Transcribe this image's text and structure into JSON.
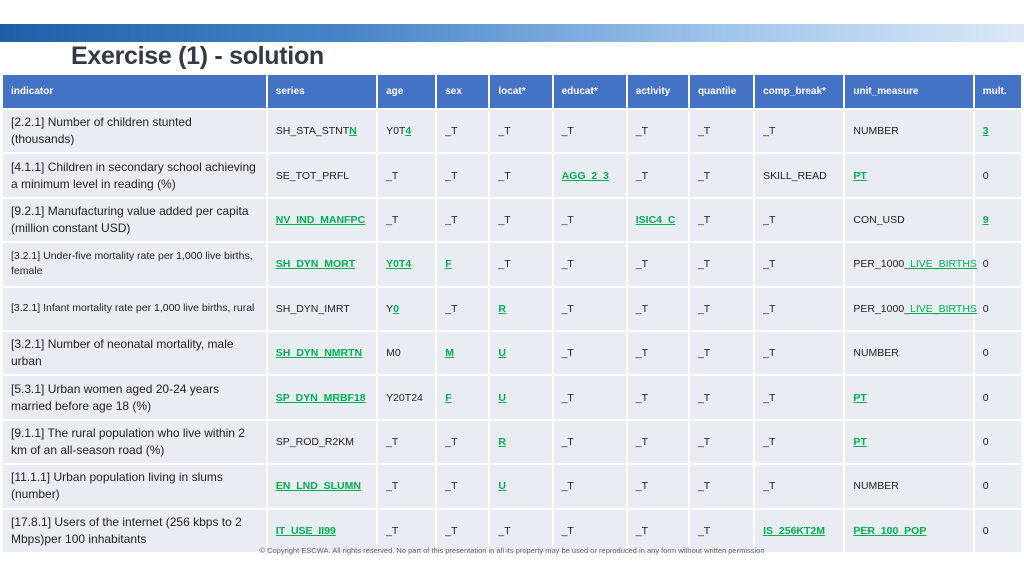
{
  "title": "Exercise (1) - solution",
  "headers": [
    "indicator",
    "series",
    "age",
    "sex",
    "locat*",
    "educat*",
    "activity",
    "quantile",
    "comp_break*",
    "unit_measure",
    "mult."
  ],
  "rows": [
    {
      "indicator": "[2.2.1] Number of children stunted (thousands)",
      "series": {
        "pre": "SH_STA_STNT",
        "hl": "N",
        "post": ""
      },
      "age": {
        "pre": "Y0T",
        "hl": "4",
        "post": ""
      },
      "sex": "_T",
      "locat": "_T",
      "educat": "_T",
      "activity": "_T",
      "quantile": "_T",
      "comp_break": "_T",
      "unit_measure": "NUMBER",
      "mult": "3"
    },
    {
      "indicator": "[4.1.1] Children in secondary school achieving a minimum level in reading (%)",
      "series": "SE_TOT_PRFL",
      "age": "_T",
      "sex": "_T",
      "locat": "_T",
      "educat": "AGG_2_3",
      "activity": "_T",
      "quantile": "_T",
      "comp_break": "SKILL_READ",
      "unit_measure": "PT",
      "mult": "0"
    },
    {
      "indicator": "[9.2.1] Manufacturing value added per capita (million constant USD)",
      "series": "NV_IND_MANFPC",
      "age": "_T",
      "sex": "_T",
      "locat": "_T",
      "educat": "_T",
      "activity": "ISIC4_C",
      "quantile": "_T",
      "comp_break": "_T",
      "unit_measure": "CON_USD",
      "mult": "9"
    },
    {
      "indicator": "[3.2.1] Under-five mortality rate per 1,000 live births, female",
      "series": "SH_DYN_MORT",
      "age": "Y0T4",
      "sex": "F",
      "locat": "_T",
      "educat": "_T",
      "activity": "_T",
      "quantile": "_T",
      "comp_break": "_T",
      "unit_measure": {
        "pre": "PER_1000_",
        "hl": "LIVE_BIRTHS",
        "post": ""
      },
      "mult": "0"
    },
    {
      "indicator": "[3.2.1] Infant mortality rate per 1,000 live births, rural",
      "series": "SH_DYN_IMRT",
      "age": {
        "pre": "Y",
        "hl": "0",
        "post": ""
      },
      "sex": "_T",
      "locat": "R",
      "educat": "_T",
      "activity": "_T",
      "quantile": "_T",
      "comp_break": "_T",
      "unit_measure": {
        "pre": "PER_1000_",
        "hl": "LIVE_BIRTHS",
        "post": ""
      },
      "mult": "0"
    },
    {
      "indicator": "[3.2.1] Number of neonatal mortality, male urban",
      "series": "SH_DYN_NMRTN",
      "age": "M0",
      "sex": "M",
      "locat": "U",
      "educat": "_T",
      "activity": "_T",
      "quantile": "_T",
      "comp_break": "_T",
      "unit_measure": "NUMBER",
      "mult": "0"
    },
    {
      "indicator": "[5.3.1] Urban women aged 20-24 years married before age 18 (%)",
      "series": "SP_DYN_MRBF18",
      "age": "Y20T24",
      "sex": "F",
      "locat": "U",
      "educat": "_T",
      "activity": "_T",
      "quantile": "_T",
      "comp_break": "_T",
      "unit_measure": "PT",
      "mult": "0"
    },
    {
      "indicator": "[9.1.1] The rural population who live within 2 km of an all-season road (%)",
      "series": "SP_ROD_R2KM",
      "age": "_T",
      "sex": "_T",
      "locat": "R",
      "educat": "_T",
      "activity": "_T",
      "quantile": "_T",
      "comp_break": "_T",
      "unit_measure": "PT",
      "mult": "0"
    },
    {
      "indicator": "[11.1.1] Urban population living in slums (number)",
      "series": "EN_LND_SLUMN",
      "age": "_T",
      "sex": "_T",
      "locat": "U",
      "educat": "_T",
      "activity": "_T",
      "quantile": "_T",
      "comp_break": "_T",
      "unit_measure": "NUMBER",
      "mult": "0"
    },
    {
      "indicator": "[17.8.1] Users of the internet (256 kbps to 2 Mbps)per 100 inhabitants",
      "series": "IT_USE_II99",
      "age": "_T",
      "sex": "_T",
      "locat": "_T",
      "educat": "_T",
      "activity": "_T",
      "quantile": "_T",
      "comp_break": "IS_256KT2M",
      "unit_measure": "PER_100_POP",
      "mult": "0"
    }
  ],
  "highlights": [
    [
      "mult"
    ],
    [
      "educat",
      "unit_measure"
    ],
    [
      "series",
      "activity",
      "mult"
    ],
    [
      "series",
      "age",
      "sex"
    ],
    [
      "locat"
    ],
    [
      "series",
      "sex",
      "locat"
    ],
    [
      "series",
      "sex",
      "locat",
      "unit_measure"
    ],
    [
      "locat",
      "unit_measure"
    ],
    [
      "series",
      "locat"
    ],
    [
      "series",
      "comp_break",
      "unit_measure"
    ]
  ],
  "small_indicator_rows": [
    3,
    4
  ],
  "colors": {
    "header_bg": "#4472c4",
    "cell_bg": "#e9ecf3",
    "highlight": "#00b050",
    "topbar": "#1f5fa8"
  },
  "copyright": "© Copyright ESCWA. All rights reserved. No part of this presentation in all its property may be used or reproduced in any form without written permission"
}
